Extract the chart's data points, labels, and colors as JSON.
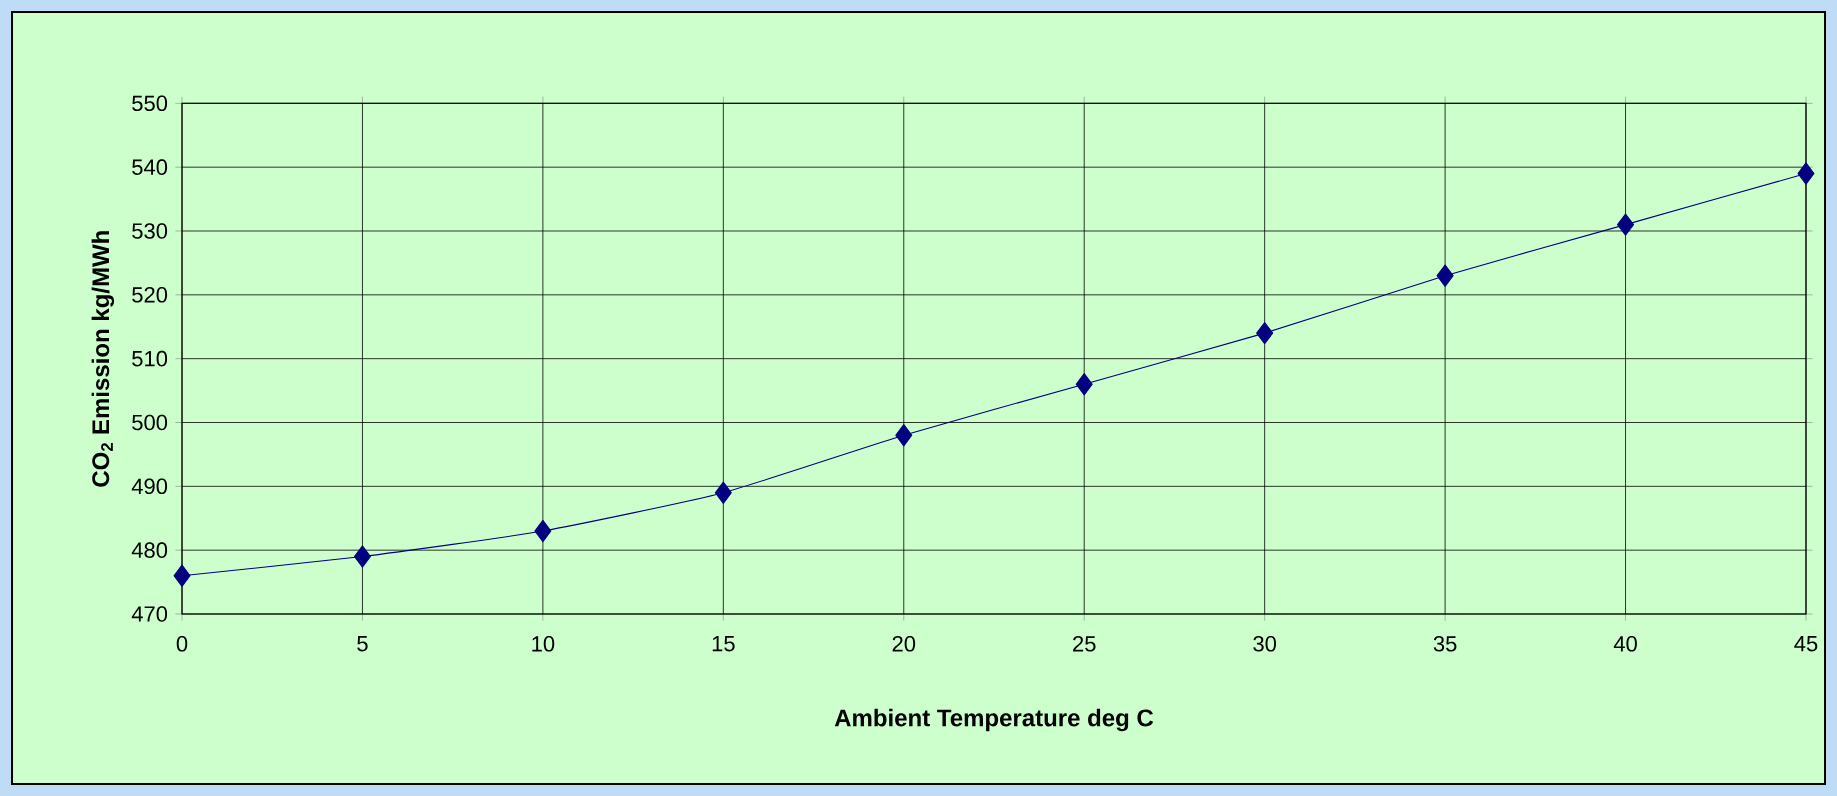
{
  "chart_data": {
    "type": "line",
    "xlabel": "Ambient Temperature deg C",
    "ylabel": "CO$_{2}$ Emission kg/MWh",
    "x": [
      0,
      5,
      10,
      15,
      20,
      25,
      30,
      35,
      40,
      45
    ],
    "series": [
      {
        "color": "#000080",
        "values": [
          476,
          479,
          483,
          489,
          498,
          506,
          514,
          523,
          531,
          539
        ]
      }
    ],
    "xlim": [
      0,
      45
    ],
    "xticks": [
      0,
      5,
      10,
      15,
      20,
      25,
      30,
      35,
      40,
      45
    ],
    "ylim": [
      470,
      550
    ],
    "yticks": [
      470,
      480,
      490,
      500,
      510,
      520,
      530,
      540,
      550
    ],
    "grid": true,
    "marker": "diamond",
    "line_style": "solid"
  }
}
